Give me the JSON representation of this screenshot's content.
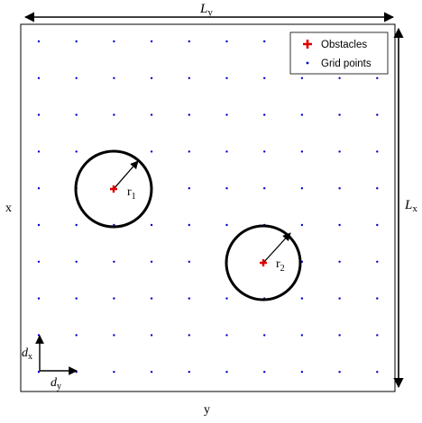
{
  "labels": {
    "top_dimension": "L",
    "top_dimension_sub": "y",
    "right_dimension": "L",
    "right_dimension_sub": "x",
    "left_axis": "x",
    "bottom_axis": "y",
    "step_x": "d",
    "step_x_sub": "x",
    "step_y": "d",
    "step_y_sub": "y"
  },
  "legend": {
    "items": [
      {
        "label": "Obstacles",
        "marker": "plus",
        "color": "#e00000"
      },
      {
        "label": "Grid points",
        "marker": "dot",
        "color": "#0000cc"
      }
    ]
  },
  "grid": {
    "columns": 10,
    "rows": 10,
    "color": "#0000cc"
  },
  "obstacles": [
    {
      "radius_label": "r",
      "radius_sub": "1",
      "color": "#e00000"
    },
    {
      "radius_label": "r",
      "radius_sub": "2",
      "color": "#e00000"
    }
  ],
  "colors": {
    "frame": "#000000",
    "circle": "#000000"
  }
}
